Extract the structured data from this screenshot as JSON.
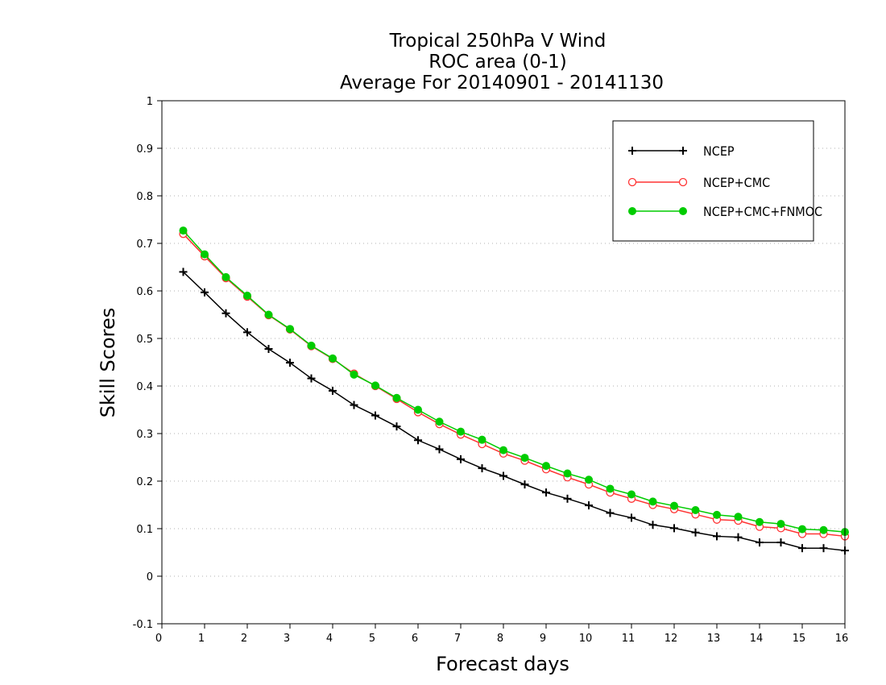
{
  "chart_data": {
    "type": "line",
    "title": [
      "Tropical 250hPa V Wind",
      "ROC area (0-1)",
      "Average For 20140901 - 20141130"
    ],
    "xlabel": "Forecast days",
    "ylabel": "Skill Scores",
    "xlim": [
      0,
      16
    ],
    "ylim": [
      -0.1,
      1
    ],
    "xticks": [
      0,
      1,
      2,
      3,
      4,
      5,
      6,
      7,
      8,
      9,
      10,
      11,
      12,
      13,
      14,
      15,
      16
    ],
    "yticks": [
      -0.1,
      0,
      0.1,
      0.2,
      0.3,
      0.4,
      0.5,
      0.6,
      0.7,
      0.8,
      0.9,
      1
    ],
    "ytick_labels": [
      "-0.1",
      "0",
      "0.1",
      "0.2",
      "0.3",
      "0.4",
      "0.5",
      "0.6",
      "0.7",
      "0.8",
      "0.9",
      "1"
    ],
    "grid": "horizontal dotted",
    "legend_position": "top-right",
    "x": [
      0.5,
      1,
      1.5,
      2,
      2.5,
      3,
      3.5,
      4,
      4.5,
      5,
      5.5,
      6,
      6.5,
      7,
      7.5,
      8,
      8.5,
      9,
      9.5,
      10,
      10.5,
      11,
      11.5,
      12,
      12.5,
      13,
      13.5,
      14,
      14.5,
      15,
      15.5,
      16
    ],
    "series": [
      {
        "name": "NCEP",
        "color": "#000000",
        "marker": "plus",
        "values": [
          0.64,
          0.597,
          0.553,
          0.513,
          0.478,
          0.449,
          0.416,
          0.39,
          0.36,
          0.338,
          0.315,
          0.286,
          0.267,
          0.246,
          0.227,
          0.211,
          0.193,
          0.176,
          0.163,
          0.149,
          0.133,
          0.123,
          0.108,
          0.101,
          0.092,
          0.084,
          0.082,
          0.071,
          0.071,
          0.059,
          0.059,
          0.054
        ]
      },
      {
        "name": "NCEP+CMC",
        "color": "#ff3333",
        "marker": "open-circle",
        "values": [
          0.72,
          0.673,
          0.627,
          0.588,
          0.549,
          0.519,
          0.484,
          0.457,
          0.426,
          0.4,
          0.373,
          0.345,
          0.32,
          0.298,
          0.278,
          0.258,
          0.243,
          0.225,
          0.208,
          0.193,
          0.176,
          0.163,
          0.15,
          0.141,
          0.13,
          0.119,
          0.117,
          0.104,
          0.101,
          0.089,
          0.089,
          0.084
        ]
      },
      {
        "name": "NCEP+CMC+FNMOC",
        "color": "#00cc00",
        "marker": "filled-circle",
        "values": [
          0.727,
          0.677,
          0.629,
          0.59,
          0.55,
          0.52,
          0.485,
          0.458,
          0.424,
          0.401,
          0.375,
          0.35,
          0.325,
          0.304,
          0.287,
          0.265,
          0.249,
          0.232,
          0.216,
          0.203,
          0.184,
          0.172,
          0.157,
          0.148,
          0.139,
          0.129,
          0.125,
          0.114,
          0.11,
          0.099,
          0.097,
          0.093
        ]
      }
    ]
  }
}
